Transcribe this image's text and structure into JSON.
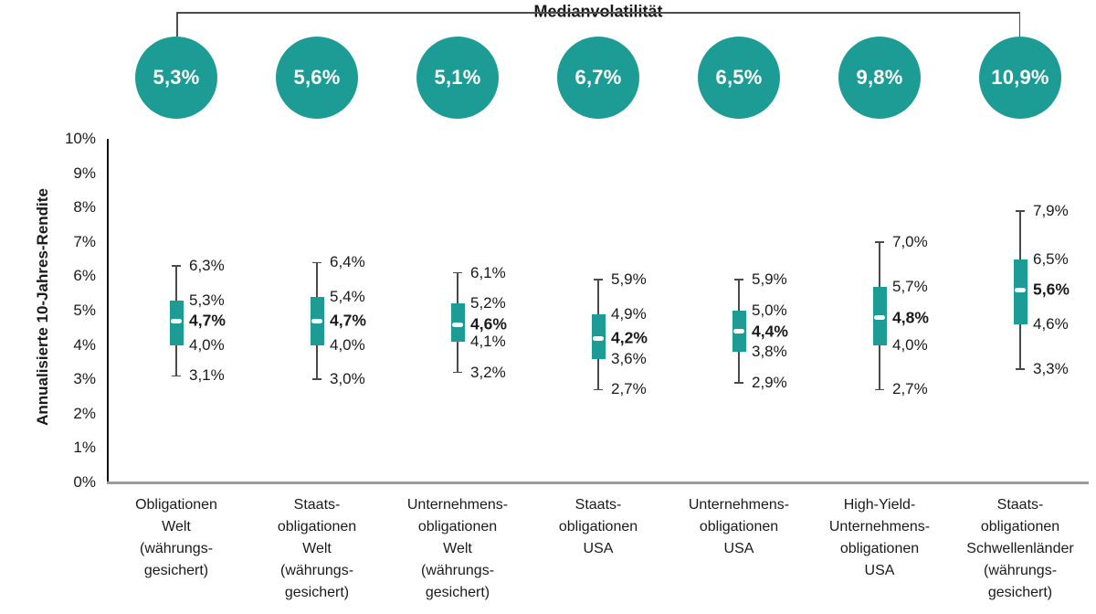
{
  "header": {
    "title": "Medianvolatilität"
  },
  "y_axis": {
    "title": "Annualisierte 10-Jahres-Rendite",
    "ticks": [
      "10%",
      "9%",
      "8%",
      "7%",
      "6%",
      "5%",
      "4%",
      "3%",
      "2%",
      "1%",
      "0%"
    ]
  },
  "colors": {
    "teal": "#1d9c95",
    "whisker": "#4a4a4a",
    "axis_gray": "#9a9a9a",
    "axis_black": "#111111",
    "text": "#1a1a1a",
    "circle_text": "#ffffff"
  },
  "chart_data": {
    "type": "boxplot",
    "title": "Medianvolatilität",
    "ylabel": "Annualisierte 10-Jahres-Rendite",
    "ylim": [
      0,
      10
    ],
    "y_tick_labels": [
      "0%",
      "1%",
      "2%",
      "3%",
      "4%",
      "5%",
      "6%",
      "7%",
      "8%",
      "9%",
      "10%"
    ],
    "grid": false,
    "legend_position": "none",
    "series": [
      {
        "category_lines": [
          "Obligationen",
          "Welt",
          "(währungs-",
          "gesichert)"
        ],
        "median_volatility_label": "5,3%",
        "values": {
          "max": 6.3,
          "q3": 5.3,
          "median": 4.7,
          "q1": 4.0,
          "min": 3.1
        },
        "value_labels": {
          "max": "6,3%",
          "q3": "5,3%",
          "median": "4,7%",
          "q1": "4,0%",
          "min": "3,1%"
        }
      },
      {
        "category_lines": [
          "Staats-",
          "obligationen",
          "Welt",
          "(währungs-",
          "gesichert)"
        ],
        "median_volatility_label": "5,6%",
        "values": {
          "max": 6.4,
          "q3": 5.4,
          "median": 4.7,
          "q1": 4.0,
          "min": 3.0
        },
        "value_labels": {
          "max": "6,4%",
          "q3": "5,4%",
          "median": "4,7%",
          "q1": "4,0%",
          "min": "3,0%"
        }
      },
      {
        "category_lines": [
          "Unternehmens-",
          "obligationen",
          "Welt",
          "(währungs-",
          "gesichert)"
        ],
        "median_volatility_label": "5,1%",
        "values": {
          "max": 6.1,
          "q3": 5.2,
          "median": 4.6,
          "q1": 4.1,
          "min": 3.2
        },
        "value_labels": {
          "max": "6,1%",
          "q3": "5,2%",
          "median": "4,6%",
          "q1": "4,1%",
          "min": "3,2%"
        }
      },
      {
        "category_lines": [
          "Staats-",
          "obligationen",
          "USA"
        ],
        "median_volatility_label": "6,7%",
        "values": {
          "max": 5.9,
          "q3": 4.9,
          "median": 4.2,
          "q1": 3.6,
          "min": 2.7
        },
        "value_labels": {
          "max": "5,9%",
          "q3": "4,9%",
          "median": "4,2%",
          "q1": "3,6%",
          "min": "2,7%"
        }
      },
      {
        "category_lines": [
          "Unternehmens-",
          "obligationen",
          "USA"
        ],
        "median_volatility_label": "6,5%",
        "values": {
          "max": 5.9,
          "q3": 5.0,
          "median": 4.4,
          "q1": 3.8,
          "min": 2.9
        },
        "value_labels": {
          "max": "5,9%",
          "q3": "5,0%",
          "median": "4,4%",
          "q1": "3,8%",
          "min": "2,9%"
        }
      },
      {
        "category_lines": [
          "High-Yield-",
          "Unternehmens-",
          "obligationen",
          "USA"
        ],
        "median_volatility_label": "9,8%",
        "values": {
          "max": 7.0,
          "q3": 5.7,
          "median": 4.8,
          "q1": 4.0,
          "min": 2.7
        },
        "value_labels": {
          "max": "7,0%",
          "q3": "5,7%",
          "median": "4,8%",
          "q1": "4,0%",
          "min": "2,7%"
        }
      },
      {
        "category_lines": [
          "Staats-",
          "obligationen",
          "Schwellenländer",
          "(währungs-",
          "gesichert)"
        ],
        "median_volatility_label": "10,9%",
        "values": {
          "max": 7.9,
          "q3": 6.5,
          "median": 5.6,
          "q1": 4.6,
          "min": 3.3
        },
        "value_labels": {
          "max": "7,9%",
          "q3": "6,5%",
          "median": "5,6%",
          "q1": "4,6%",
          "min": "3,3%"
        }
      }
    ]
  }
}
